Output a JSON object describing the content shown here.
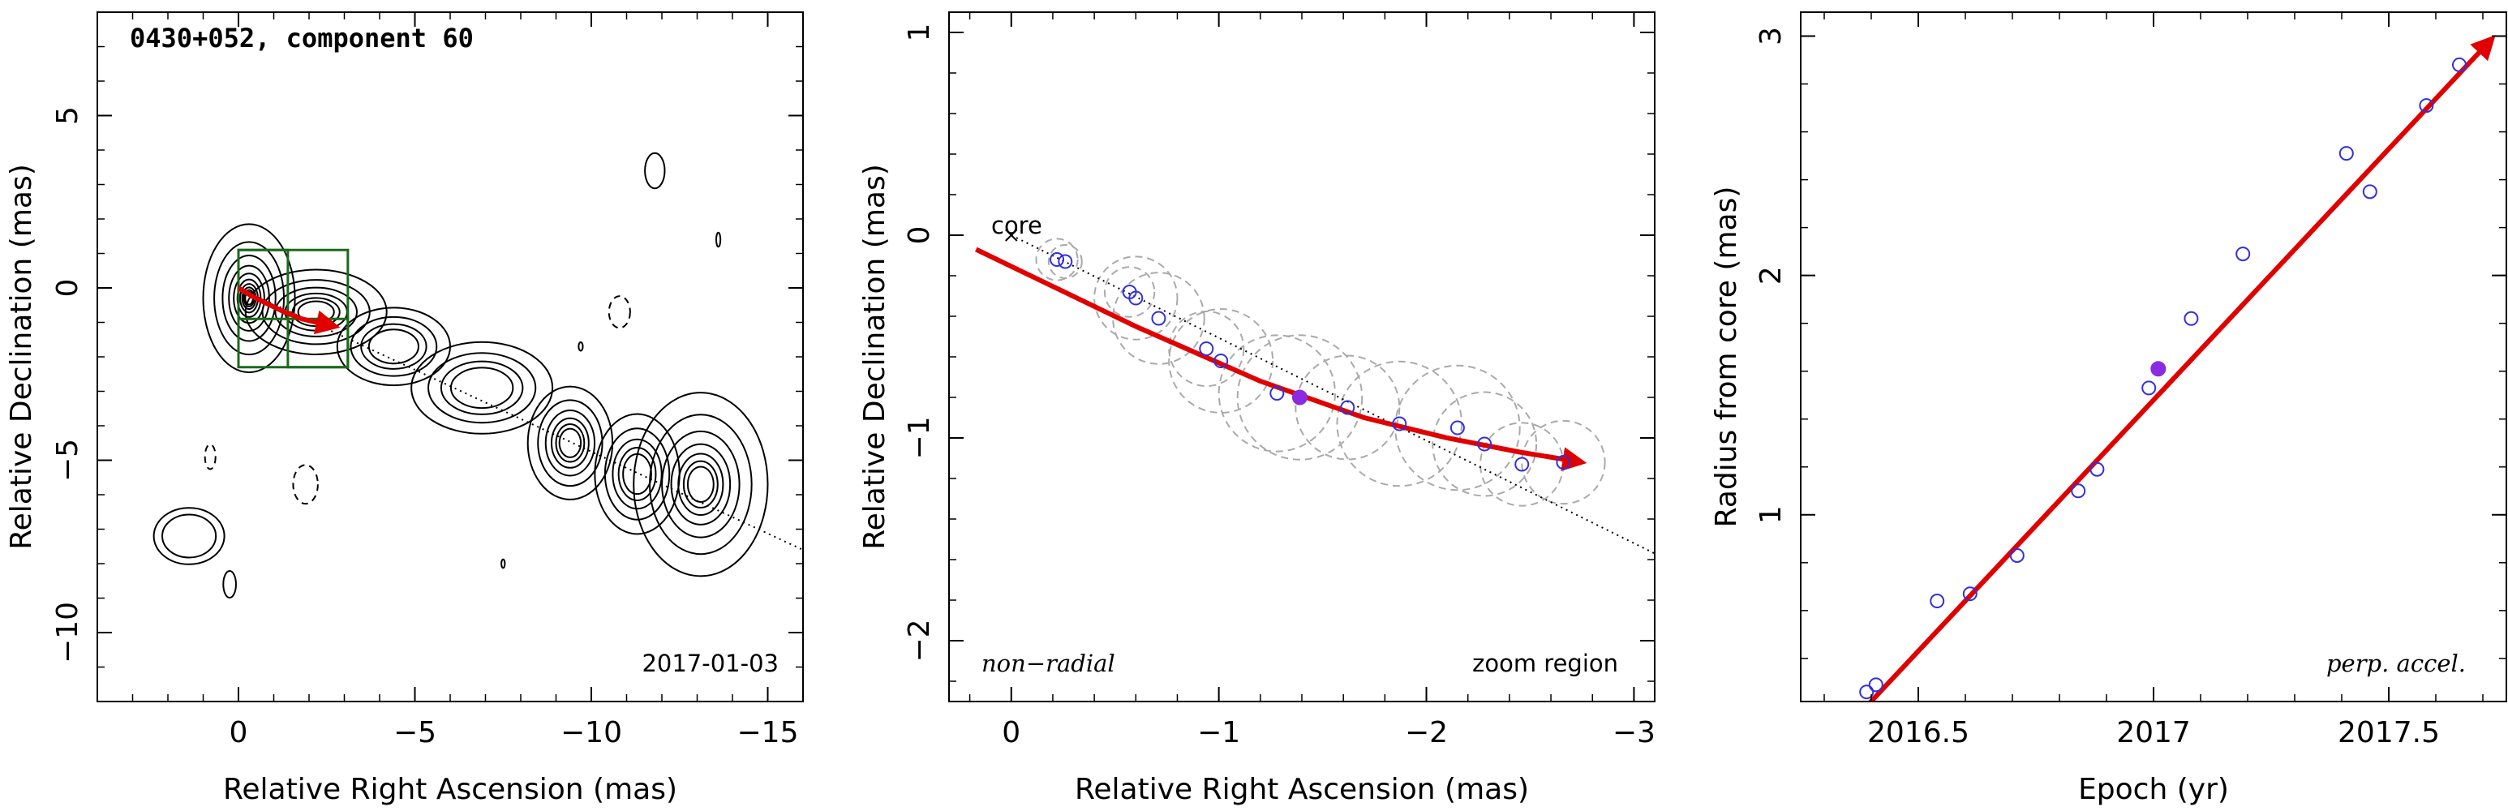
{
  "colors": {
    "frame": "#000000",
    "contour": "#000000",
    "motion_arrow": "#e00000",
    "box": "#1a6b1a",
    "point": "#3030e0",
    "highlight": "#8a2be2",
    "circle": "#aaaaaa"
  },
  "chart_data": [
    {
      "type": "contour",
      "panel": "map",
      "title": "0430+052, component 60",
      "xlabel": "Relative Right Ascension (mas)",
      "ylabel": "Relative Declination (mas)",
      "xlim": [
        4,
        -16
      ],
      "ylim": [
        -12,
        8
      ],
      "xticks": [
        0,
        -5,
        -10,
        -15
      ],
      "xtick_labels": [
        "0",
        "−5",
        "−10",
        "−15"
      ],
      "yticks": [
        5,
        0,
        -5,
        -10
      ],
      "ytick_labels": [
        "5",
        "0",
        "−5",
        "−10"
      ],
      "epoch_label": "2017-01-03",
      "jet_axis_line": {
        "x": [
          0,
          -16
        ],
        "y": [
          0,
          -7.6
        ]
      },
      "motion_arrow": {
        "x": [
          0.0,
          -0.4,
          -0.9,
          -1.3,
          -1.8,
          -2.3,
          -2.75
        ],
        "y": [
          0.0,
          -0.25,
          -0.5,
          -0.7,
          -0.9,
          -1.02,
          -1.12
        ]
      },
      "zoom_boxes": [
        {
          "x": [
            0,
            -3.1
          ],
          "y": [
            1.1,
            -2.3
          ]
        },
        {
          "x": [
            0,
            -1.4
          ],
          "y": [
            1.1,
            -0.9
          ]
        },
        {
          "x": [
            -1.4,
            -3.1
          ],
          "y": [
            -0.9,
            -2.3
          ]
        }
      ],
      "contour_components": [
        {
          "x": -0.3,
          "y": -0.3,
          "base_rx": 1.3,
          "base_ry": 2.1,
          "levels": 10,
          "negative": false
        },
        {
          "x": -2.2,
          "y": -0.7,
          "base_rx": 2.0,
          "base_ry": 1.2,
          "levels": 6,
          "negative": false
        },
        {
          "x": -4.4,
          "y": -1.7,
          "base_rx": 1.6,
          "base_ry": 1.1,
          "levels": 4,
          "negative": false
        },
        {
          "x": -6.9,
          "y": -2.9,
          "base_rx": 2.0,
          "base_ry": 1.3,
          "levels": 4,
          "negative": false
        },
        {
          "x": -9.4,
          "y": -4.5,
          "base_rx": 1.2,
          "base_ry": 1.6,
          "levels": 6,
          "negative": false
        },
        {
          "x": -11.3,
          "y": -5.4,
          "base_rx": 1.2,
          "base_ry": 1.7,
          "levels": 5,
          "negative": false
        },
        {
          "x": -13.1,
          "y": -5.7,
          "base_rx": 1.9,
          "base_ry": 2.6,
          "levels": 7,
          "negative": false
        },
        {
          "x": 1.4,
          "y": -7.2,
          "base_rx": 1.0,
          "base_ry": 0.8,
          "levels": 2,
          "negative": false
        },
        {
          "x": 0.25,
          "y": -8.6,
          "base_rx": 0.18,
          "base_ry": 0.38,
          "levels": 1,
          "negative": false
        },
        {
          "x": -11.8,
          "y": 3.4,
          "base_rx": 0.28,
          "base_ry": 0.5,
          "levels": 1,
          "negative": false
        },
        {
          "x": -13.6,
          "y": 1.4,
          "base_rx": 0.06,
          "base_ry": 0.2,
          "levels": 1,
          "negative": false
        },
        {
          "x": -7.5,
          "y": -8.0,
          "base_rx": 0.05,
          "base_ry": 0.12,
          "levels": 1,
          "negative": false
        },
        {
          "x": -9.7,
          "y": -1.7,
          "base_rx": 0.06,
          "base_ry": 0.12,
          "levels": 1,
          "negative": false
        },
        {
          "x": -10.8,
          "y": -0.7,
          "base_rx": 0.3,
          "base_ry": 0.45,
          "levels": 1,
          "negative": true
        },
        {
          "x": -1.9,
          "y": -5.7,
          "base_rx": 0.35,
          "base_ry": 0.55,
          "levels": 1,
          "negative": true
        },
        {
          "x": 0.8,
          "y": -4.9,
          "base_rx": 0.15,
          "base_ry": 0.35,
          "levels": 1,
          "negative": true
        }
      ]
    },
    {
      "type": "scatter",
      "panel": "zoom",
      "xlabel": "Relative Right Ascension (mas)",
      "ylabel": "Relative Declination (mas)",
      "xlim": [
        0.3,
        -3.1
      ],
      "ylim": [
        -2.3,
        1.1
      ],
      "xticks": [
        0,
        -1,
        -2,
        -3
      ],
      "xtick_labels": [
        "0",
        "−1",
        "−2",
        "−3"
      ],
      "yticks": [
        1,
        0,
        -1,
        -2
      ],
      "ytick_labels": [
        "1",
        "0",
        "−1",
        "−2"
      ],
      "core_label": "core",
      "core": {
        "x": 0.0,
        "y": 0.0
      },
      "left_note": "non−radial",
      "right_note": "zoom region",
      "jet_axis_line": {
        "x": [
          0.0,
          -3.1
        ],
        "y": [
          0.0,
          -1.57
        ]
      },
      "motion_arrow": {
        "x": [
          0.17,
          -0.6,
          -1.2,
          -1.7,
          -2.1,
          -2.45,
          -2.75
        ],
        "y": [
          -0.07,
          -0.45,
          -0.72,
          -0.9,
          -1.0,
          -1.07,
          -1.12
        ]
      },
      "points": {
        "x": [
          -0.22,
          -0.26,
          -0.57,
          -0.6,
          -0.71,
          -0.94,
          -1.01,
          -1.28,
          -1.39,
          -1.62,
          -1.87,
          -2.15,
          -2.28,
          -2.46,
          -2.66
        ],
        "y": [
          -0.12,
          -0.13,
          -0.28,
          -0.31,
          -0.41,
          -0.56,
          -0.62,
          -0.78,
          -0.8,
          -0.85,
          -0.93,
          -0.95,
          -1.03,
          -1.13,
          -1.12
        ],
        "size": [
          0.1,
          0.08,
          0.12,
          0.2,
          0.22,
          0.18,
          0.25,
          0.28,
          0.3,
          0.25,
          0.3,
          0.3,
          0.25,
          0.2,
          0.2
        ]
      },
      "highlight_point": {
        "x": -1.39,
        "y": -0.8
      }
    },
    {
      "type": "scatter",
      "panel": "radius",
      "xlabel": "Epoch (yr)",
      "ylabel": "Radius from core (mas)",
      "xlim": [
        2016.25,
        2017.75
      ],
      "ylim": [
        0.22,
        3.1
      ],
      "xticks": [
        2016.5,
        2017,
        2017.5
      ],
      "xtick_labels": [
        "2016.5",
        "2017",
        "2017.5"
      ],
      "yticks": [
        1,
        2,
        3
      ],
      "ytick_labels": [
        "1",
        "2",
        "3"
      ],
      "note": "perp. accel.",
      "fit_arrow": {
        "x": [
          2016.39,
          2017.72
        ],
        "y": [
          0.2,
          2.99
        ]
      },
      "points": {
        "x": [
          2016.39,
          2016.41,
          2016.54,
          2016.61,
          2016.71,
          2016.84,
          2016.88,
          2016.99,
          2017.08,
          2017.19,
          2017.41,
          2017.46,
          2017.58,
          2017.65
        ],
        "y": [
          0.26,
          0.29,
          0.64,
          0.67,
          0.83,
          1.1,
          1.19,
          1.53,
          1.82,
          2.09,
          2.51,
          2.35,
          2.71,
          2.88
        ]
      },
      "highlight_point": {
        "x": 2017.01,
        "y": 1.61
      }
    }
  ]
}
